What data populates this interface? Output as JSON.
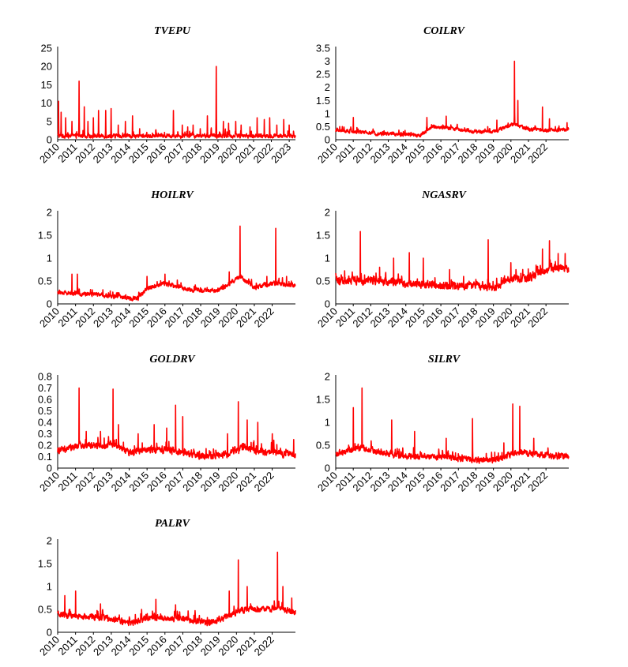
{
  "series_color": "#ff0000",
  "chart_data": [
    {
      "type": "line",
      "title": "TVEPU",
      "yticks": [
        "0",
        "5",
        "10",
        "15",
        "20",
        "25"
      ],
      "ylim": [
        0,
        25
      ],
      "xticks": [
        "2010",
        "2011",
        "2012",
        "2013",
        "2014",
        "2015",
        "2016",
        "2017",
        "2018",
        "2019",
        "2020",
        "2021",
        "2022",
        "2023"
      ],
      "xlim": [
        2010,
        2023.35
      ],
      "baseline": 1.0,
      "noise": 0.8,
      "peaks": [
        [
          2010.05,
          10.5
        ],
        [
          2010.2,
          7.5
        ],
        [
          2010.45,
          6
        ],
        [
          2010.8,
          5
        ],
        [
          2011.2,
          16
        ],
        [
          2011.5,
          9
        ],
        [
          2011.7,
          5
        ],
        [
          2012.0,
          6
        ],
        [
          2012.3,
          8
        ],
        [
          2012.7,
          8
        ],
        [
          2013.0,
          8.5
        ],
        [
          2013.4,
          4
        ],
        [
          2013.8,
          5
        ],
        [
          2014.2,
          6.5
        ],
        [
          2014.6,
          3
        ],
        [
          2015.0,
          2
        ],
        [
          2015.5,
          2.5
        ],
        [
          2016.0,
          2
        ],
        [
          2016.5,
          8
        ],
        [
          2017.0,
          4
        ],
        [
          2017.3,
          3.5
        ],
        [
          2017.6,
          4
        ],
        [
          2018.0,
          3
        ],
        [
          2018.4,
          6.5
        ],
        [
          2018.9,
          20
        ],
        [
          2019.3,
          5
        ],
        [
          2019.6,
          4.5
        ],
        [
          2020.0,
          5
        ],
        [
          2020.3,
          4
        ],
        [
          2020.8,
          3.5
        ],
        [
          2021.2,
          6
        ],
        [
          2021.6,
          5.5
        ],
        [
          2021.9,
          6
        ],
        [
          2022.3,
          4
        ],
        [
          2022.7,
          5.5
        ],
        [
          2023.0,
          4
        ]
      ]
    },
    {
      "type": "line",
      "title": "COILRV",
      "yticks": [
        "0",
        "0.5",
        "1",
        "1.5",
        "2",
        "2.5",
        "3",
        "3.5"
      ],
      "ylim": [
        0,
        3.5
      ],
      "xticks": [
        "2010",
        "2011",
        "2012",
        "2013",
        "2014",
        "2015",
        "2016",
        "2017",
        "2018",
        "2019",
        "2020",
        "2021",
        "2022"
      ],
      "xlim": [
        2010,
        2023.3
      ],
      "baseline": 0.3,
      "noise": 0.1,
      "levels": [
        [
          2010,
          0.35
        ],
        [
          2012,
          0.25
        ],
        [
          2014,
          0.2
        ],
        [
          2014.8,
          0.15
        ],
        [
          2015.5,
          0.5
        ],
        [
          2016.5,
          0.45
        ],
        [
          2017.5,
          0.3
        ],
        [
          2019,
          0.3
        ],
        [
          2020.1,
          0.6
        ],
        [
          2021,
          0.4
        ],
        [
          2022,
          0.35
        ],
        [
          2023.3,
          0.4
        ]
      ],
      "peaks": [
        [
          2011.0,
          0.85
        ],
        [
          2015.2,
          0.85
        ],
        [
          2016.3,
          0.9
        ],
        [
          2019.2,
          0.75
        ],
        [
          2020.2,
          3.0
        ],
        [
          2020.4,
          1.5
        ],
        [
          2021.8,
          1.25
        ],
        [
          2022.2,
          0.8
        ],
        [
          2023.2,
          0.65
        ]
      ]
    },
    {
      "type": "line",
      "title": "HOILRV",
      "yticks": [
        "0",
        "0.5",
        "1",
        "1.5",
        "2"
      ],
      "ylim": [
        0,
        2
      ],
      "xticks": [
        "2010",
        "2011",
        "2012",
        "2013",
        "2014",
        "2015",
        "2016",
        "2017",
        "2018",
        "2019",
        "2020",
        "2021",
        "2022"
      ],
      "xlim": [
        2010,
        2023.3
      ],
      "baseline": 0.25,
      "noise": 0.07,
      "levels": [
        [
          2010,
          0.25
        ],
        [
          2012,
          0.2
        ],
        [
          2013.5,
          0.15
        ],
        [
          2014.5,
          0.12
        ],
        [
          2015,
          0.35
        ],
        [
          2016,
          0.45
        ],
        [
          2017.5,
          0.3
        ],
        [
          2019,
          0.3
        ],
        [
          2020.2,
          0.6
        ],
        [
          2021,
          0.35
        ],
        [
          2022,
          0.45
        ],
        [
          2023.3,
          0.4
        ]
      ],
      "peaks": [
        [
          2010.8,
          0.65
        ],
        [
          2011.1,
          0.65
        ],
        [
          2015.0,
          0.6
        ],
        [
          2016.0,
          0.65
        ],
        [
          2019.6,
          0.7
        ],
        [
          2020.2,
          1.7
        ],
        [
          2021.7,
          0.6
        ],
        [
          2022.2,
          1.65
        ],
        [
          2022.8,
          0.6
        ]
      ]
    },
    {
      "type": "line",
      "title": "NGASRV",
      "yticks": [
        "0",
        "0.5",
        "1",
        "1.5",
        "2"
      ],
      "ylim": [
        0,
        2
      ],
      "xticks": [
        "2010",
        "2011",
        "2012",
        "2013",
        "2014",
        "2015",
        "2016",
        "2017",
        "2018",
        "2019",
        "2020",
        "2021",
        "2022"
      ],
      "xlim": [
        2010,
        2023.3
      ],
      "baseline": 0.45,
      "noise": 0.12,
      "levels": [
        [
          2010,
          0.5
        ],
        [
          2012,
          0.5
        ],
        [
          2014,
          0.45
        ],
        [
          2016,
          0.4
        ],
        [
          2018,
          0.4
        ],
        [
          2019,
          0.35
        ],
        [
          2020,
          0.55
        ],
        [
          2021,
          0.55
        ],
        [
          2021.5,
          0.65
        ],
        [
          2022.5,
          0.8
        ],
        [
          2023.3,
          0.75
        ]
      ],
      "peaks": [
        [
          2011.4,
          1.58
        ],
        [
          2012.5,
          0.8
        ],
        [
          2013.3,
          1.0
        ],
        [
          2014.2,
          1.12
        ],
        [
          2015.0,
          1.0
        ],
        [
          2016.5,
          0.75
        ],
        [
          2017.3,
          0.6
        ],
        [
          2018.7,
          1.4
        ],
        [
          2020.0,
          0.9
        ],
        [
          2021.8,
          1.2
        ],
        [
          2022.2,
          1.38
        ],
        [
          2022.7,
          1.1
        ],
        [
          2023.1,
          1.1
        ]
      ]
    },
    {
      "type": "line",
      "title": "GOLDRV",
      "yticks": [
        "0",
        "0.1",
        "0.2",
        "0.3",
        "0.4",
        "0.5",
        "0.6",
        "0.7",
        "0.8"
      ],
      "ylim": [
        0,
        0.8
      ],
      "xticks": [
        "2010",
        "2011",
        "2012",
        "2013",
        "2014",
        "2015",
        "2016",
        "2017",
        "2018",
        "2019",
        "2020",
        "2021",
        "2022"
      ],
      "xlim": [
        2010,
        2023.3
      ],
      "baseline": 0.14,
      "noise": 0.045,
      "levels": [
        [
          2010,
          0.15
        ],
        [
          2011.3,
          0.2
        ],
        [
          2013,
          0.2
        ],
        [
          2014,
          0.14
        ],
        [
          2015.5,
          0.16
        ],
        [
          2016.5,
          0.15
        ],
        [
          2018,
          0.1
        ],
        [
          2019.5,
          0.12
        ],
        [
          2020.4,
          0.18
        ],
        [
          2021.5,
          0.14
        ],
        [
          2023.3,
          0.12
        ]
      ],
      "peaks": [
        [
          2011.2,
          0.7
        ],
        [
          2011.6,
          0.32
        ],
        [
          2012.4,
          0.32
        ],
        [
          2013.1,
          0.69
        ],
        [
          2013.4,
          0.38
        ],
        [
          2014.5,
          0.3
        ],
        [
          2015.4,
          0.38
        ],
        [
          2016.1,
          0.35
        ],
        [
          2016.6,
          0.55
        ],
        [
          2017.0,
          0.45
        ],
        [
          2018.3,
          0.17
        ],
        [
          2019.5,
          0.3
        ],
        [
          2020.1,
          0.58
        ],
        [
          2020.6,
          0.42
        ],
        [
          2021.2,
          0.4
        ],
        [
          2022.0,
          0.3
        ],
        [
          2023.2,
          0.25
        ]
      ]
    },
    {
      "type": "line",
      "title": "SILRV",
      "yticks": [
        "0",
        "0.5",
        "1",
        "1.5",
        "2"
      ],
      "ylim": [
        0,
        2
      ],
      "xticks": [
        "2010",
        "2011",
        "2012",
        "2013",
        "2014",
        "2015",
        "2016",
        "2017",
        "2018",
        "2019",
        "2020",
        "2021",
        "2022"
      ],
      "xlim": [
        2010,
        2023.3
      ],
      "baseline": 0.3,
      "noise": 0.1,
      "levels": [
        [
          2010,
          0.3
        ],
        [
          2011.3,
          0.45
        ],
        [
          2012.5,
          0.35
        ],
        [
          2014,
          0.25
        ],
        [
          2016,
          0.25
        ],
        [
          2018,
          0.18
        ],
        [
          2019.3,
          0.18
        ],
        [
          2020.3,
          0.35
        ],
        [
          2021.5,
          0.3
        ],
        [
          2023.3,
          0.25
        ]
      ],
      "peaks": [
        [
          2011.0,
          1.32
        ],
        [
          2011.5,
          1.75
        ],
        [
          2013.2,
          1.05
        ],
        [
          2014.5,
          0.8
        ],
        [
          2016.3,
          0.65
        ],
        [
          2017.8,
          1.08
        ],
        [
          2019.6,
          0.55
        ],
        [
          2020.1,
          1.4
        ],
        [
          2020.5,
          1.35
        ],
        [
          2021.3,
          0.65
        ]
      ]
    },
    {
      "type": "line",
      "title": "PALRV",
      "yticks": [
        "0",
        "0.5",
        "1",
        "1.5",
        "2"
      ],
      "ylim": [
        0,
        2
      ],
      "xticks": [
        "2010",
        "2011",
        "2012",
        "2013",
        "2014",
        "2015",
        "2016",
        "2017",
        "2018",
        "2019",
        "2020",
        "2021",
        "2022"
      ],
      "xlim": [
        2010,
        2023.3
      ],
      "baseline": 0.3,
      "noise": 0.1,
      "levels": [
        [
          2010,
          0.4
        ],
        [
          2011,
          0.35
        ],
        [
          2013,
          0.3
        ],
        [
          2014,
          0.2
        ],
        [
          2015,
          0.3
        ],
        [
          2017,
          0.3
        ],
        [
          2018.5,
          0.2
        ],
        [
          2019.5,
          0.35
        ],
        [
          2020.3,
          0.5
        ],
        [
          2021.5,
          0.5
        ],
        [
          2022.5,
          0.55
        ],
        [
          2023.3,
          0.4
        ]
      ],
      "peaks": [
        [
          2010.4,
          0.8
        ],
        [
          2011.0,
          0.9
        ],
        [
          2012.4,
          0.62
        ],
        [
          2014.7,
          0.5
        ],
        [
          2015.5,
          0.72
        ],
        [
          2016.6,
          0.6
        ],
        [
          2019.6,
          0.9
        ],
        [
          2020.1,
          1.58
        ],
        [
          2020.6,
          1.0
        ],
        [
          2022.3,
          1.75
        ],
        [
          2022.6,
          1.0
        ],
        [
          2023.1,
          0.75
        ]
      ]
    }
  ]
}
